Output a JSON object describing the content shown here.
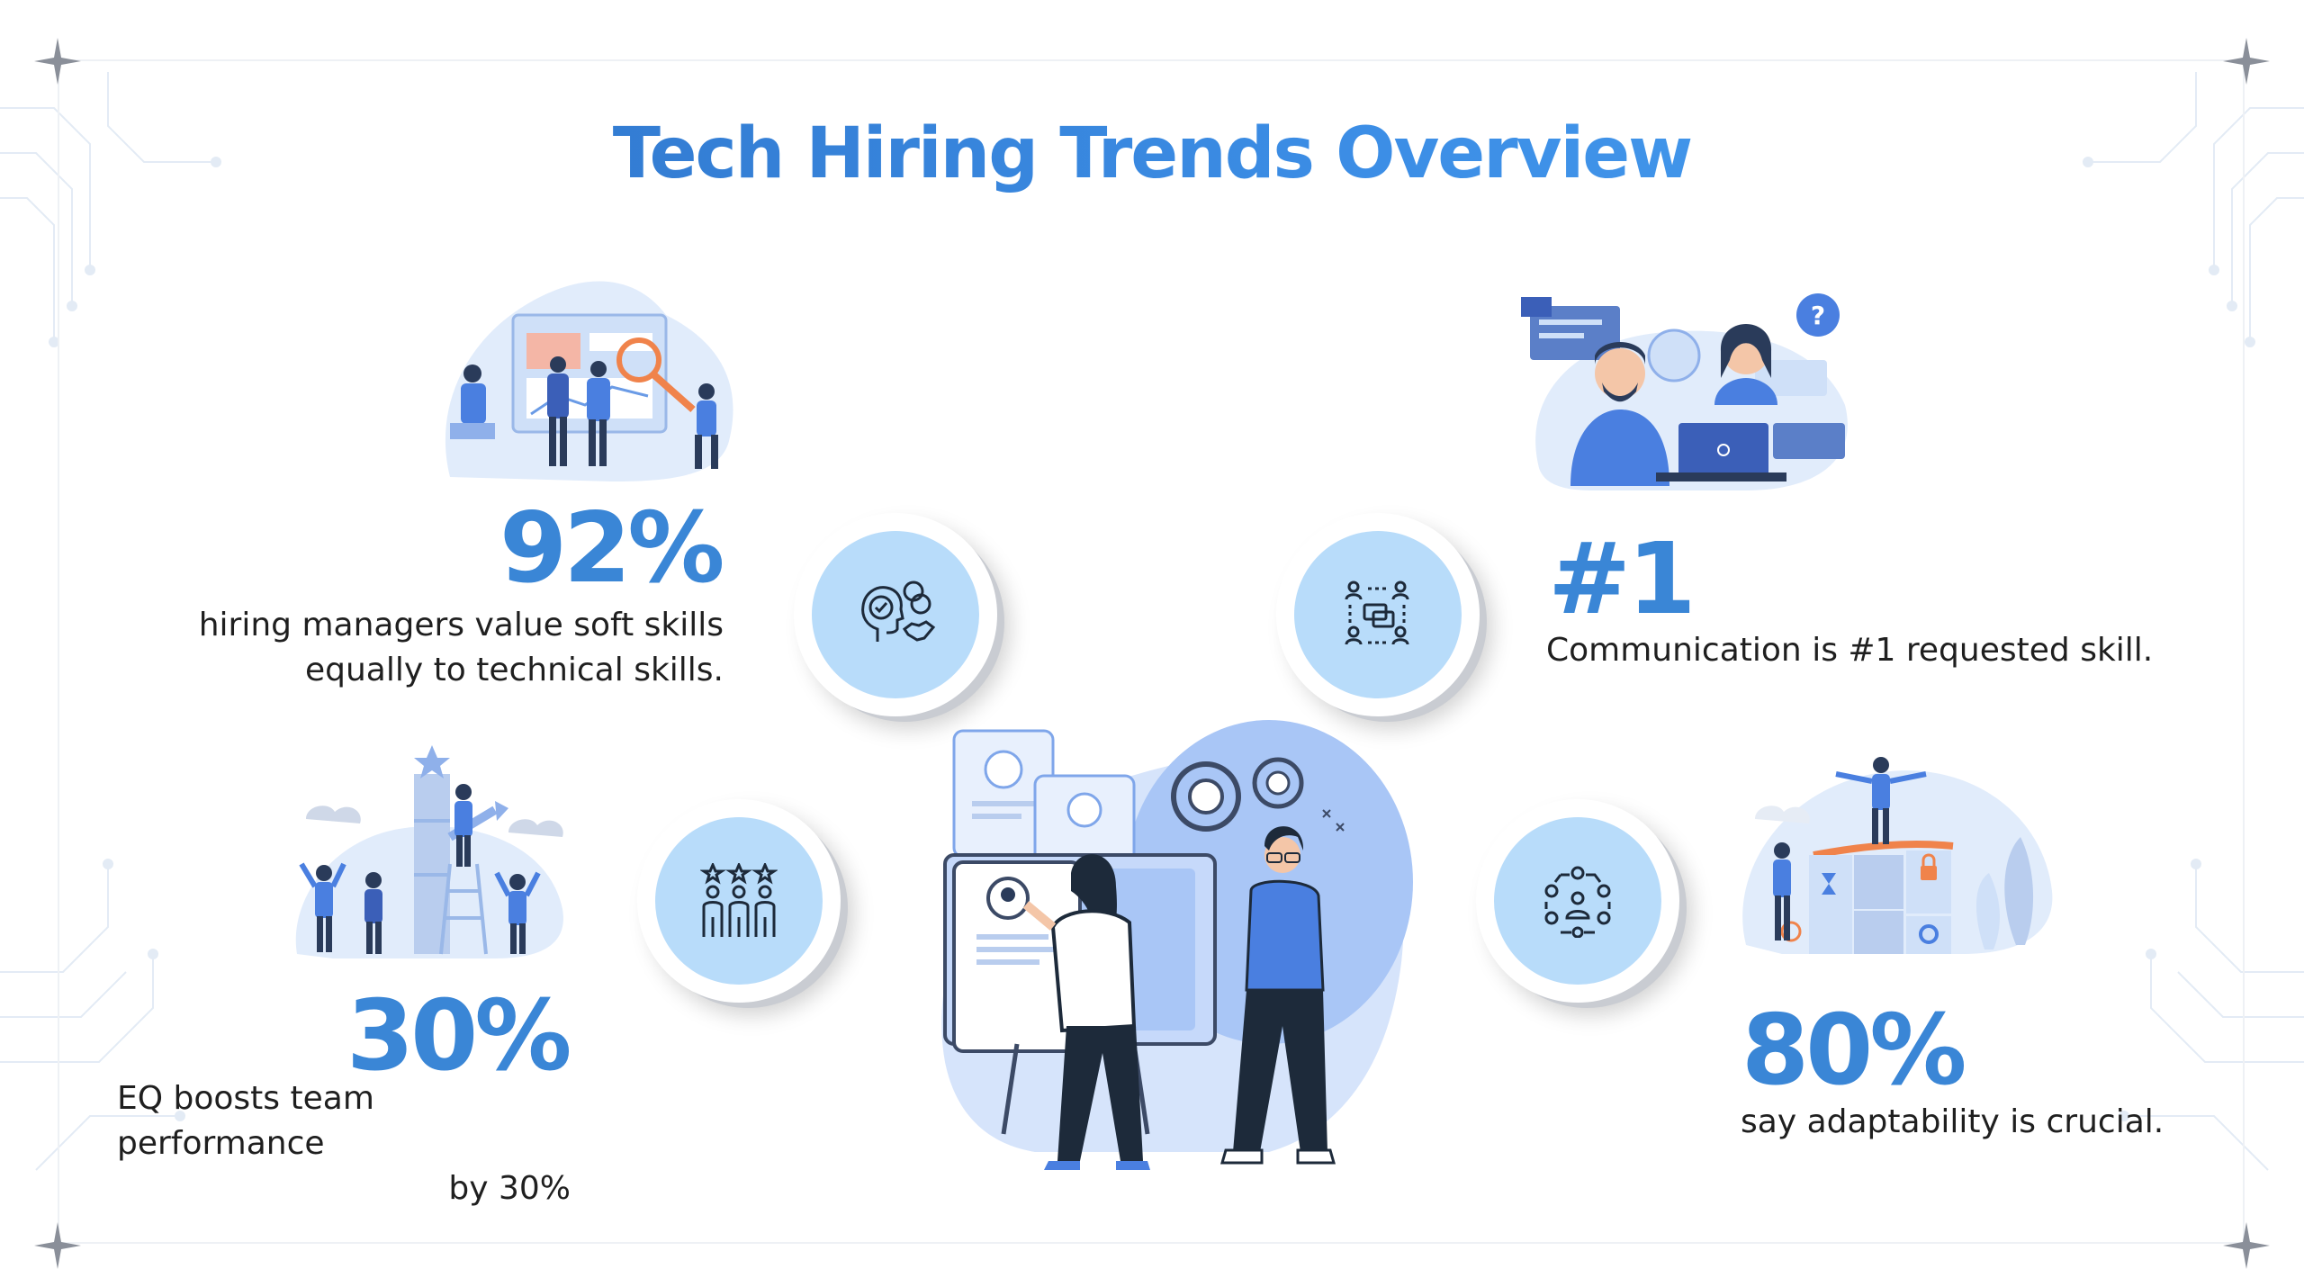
{
  "title": "Tech Hiring Trends Overview",
  "colors": {
    "accent": "#3a86d6",
    "circle_fill": "#b8dcfa",
    "illus_blue": "#4a7fe0"
  },
  "stats": [
    {
      "value": "92%",
      "lines": [
        "hiring managers value soft skills",
        "equally to technical skills."
      ],
      "icon": "soft-skills-icon"
    },
    {
      "value": "#1",
      "lines": [
        "Communication is #1 requested skill."
      ],
      "icon": "communication-network-icon"
    },
    {
      "value": "30%",
      "lines": [
        "EQ boosts team performance",
        "by 30%"
      ],
      "icon": "team-stars-icon"
    },
    {
      "value": "80%",
      "lines": [
        "say adaptability is crucial."
      ],
      "icon": "adaptability-cycle-icon"
    }
  ]
}
